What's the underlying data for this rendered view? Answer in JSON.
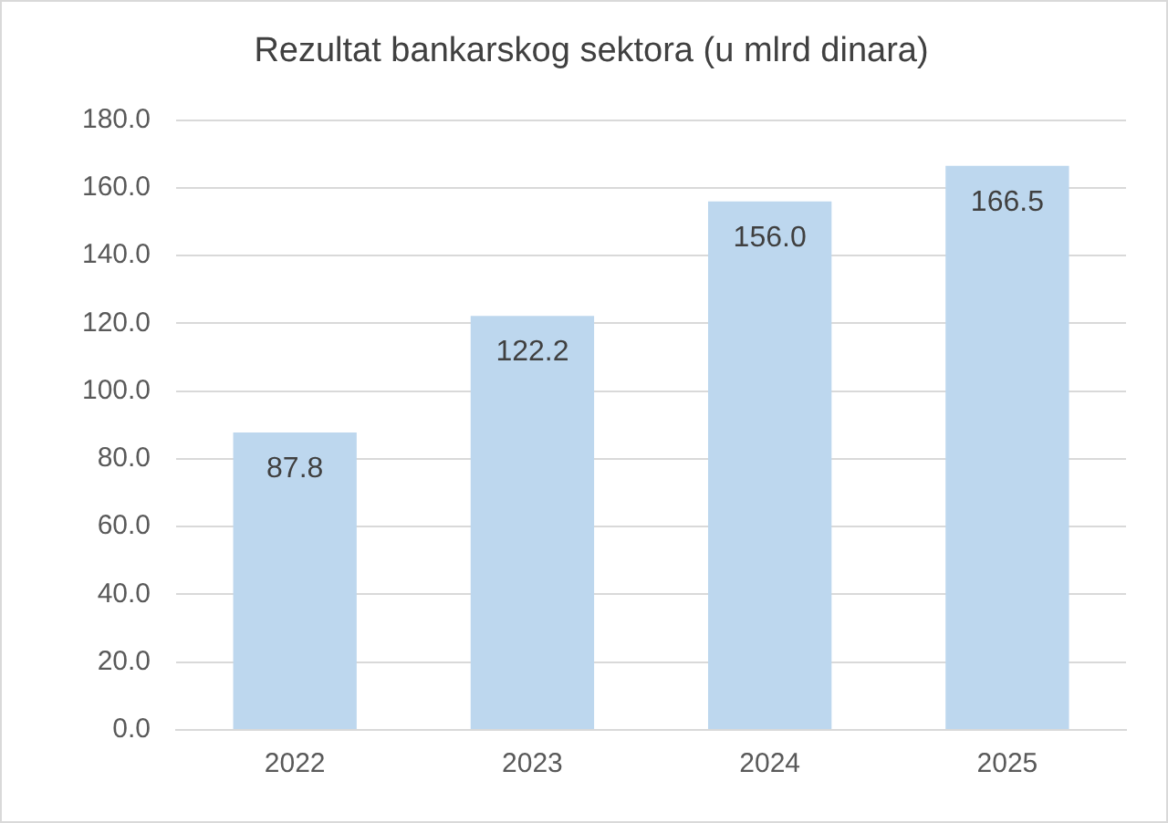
{
  "chart_data": {
    "type": "bar",
    "title": "Rezultat bankarskog sektora (u mlrd dinara)",
    "categories": [
      "2022",
      "2023",
      "2024",
      "2025"
    ],
    "values": [
      87.8,
      122.2,
      156.0,
      166.5
    ],
    "value_labels": [
      "87.8",
      "122.2",
      "156.0",
      "166.5"
    ],
    "color": "#bdd7ee",
    "ylim": [
      0,
      180
    ],
    "yticks": [
      {
        "value": 0,
        "label": "0.0"
      },
      {
        "value": 20,
        "label": "20.0"
      },
      {
        "value": 40,
        "label": "40.0"
      },
      {
        "value": 60,
        "label": "60.0"
      },
      {
        "value": 80,
        "label": "80.0"
      },
      {
        "value": 100,
        "label": "100.0"
      },
      {
        "value": 120,
        "label": "120.0"
      },
      {
        "value": 140,
        "label": "140.0"
      },
      {
        "value": 160,
        "label": "160.0"
      },
      {
        "value": 180,
        "label": "180.0"
      }
    ],
    "grid": "y",
    "legend": false
  }
}
